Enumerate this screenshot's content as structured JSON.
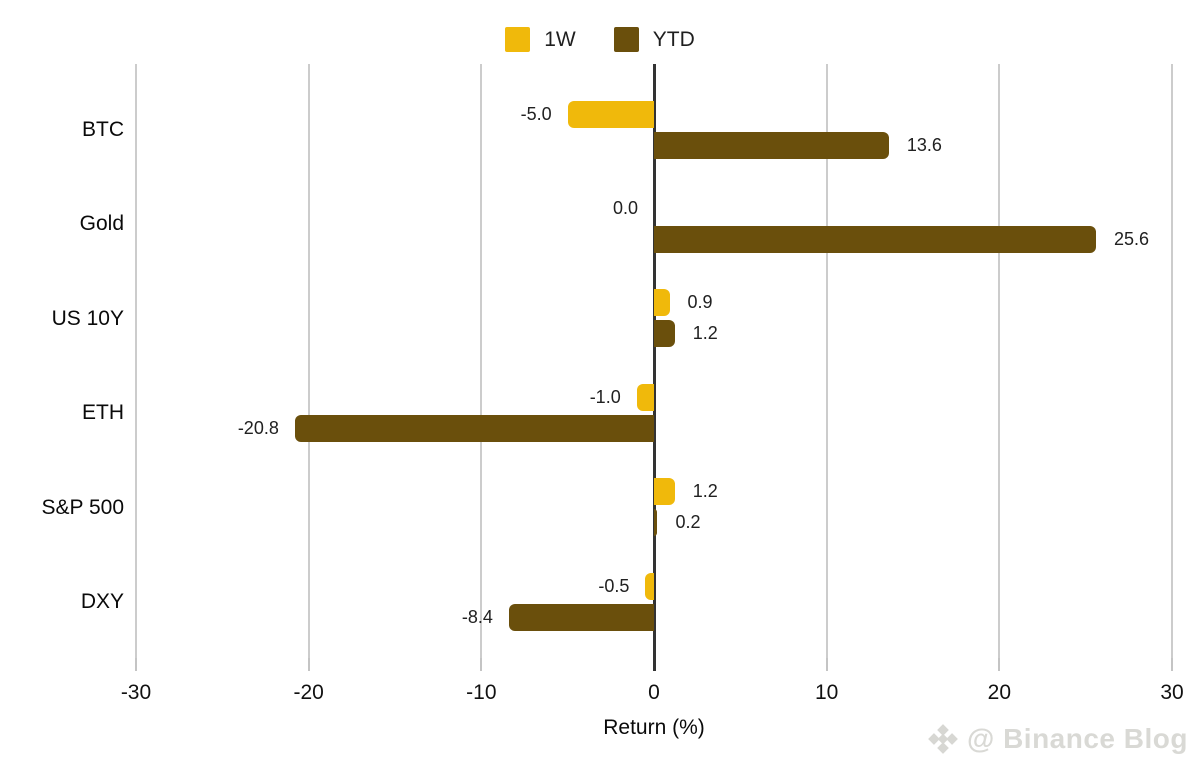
{
  "chart_data": {
    "type": "bar",
    "orientation": "horizontal",
    "title": "",
    "categories": [
      "BTC",
      "Gold",
      "US 10Y",
      "ETH",
      "S&P 500",
      "DXY"
    ],
    "series": [
      {
        "name": "1W",
        "color": "#F0B90B",
        "values": [
          -5.0,
          0.0,
          0.9,
          -1.0,
          1.2,
          -0.5
        ]
      },
      {
        "name": "YTD",
        "color": "#6A4F0C",
        "values": [
          13.6,
          25.6,
          1.2,
          -20.8,
          0.2,
          -8.4
        ]
      }
    ],
    "xlabel": "Return (%)",
    "xlim": [
      -30,
      30
    ],
    "xticks": [
      -30,
      -20,
      -10,
      0,
      10,
      20,
      30
    ],
    "grid": true,
    "legend_position": "top",
    "value_labels": true
  },
  "watermark": {
    "icon": "binance-diamond-icon",
    "text": "@ Binance Blog"
  },
  "colors": {
    "background": "#FFFFFF",
    "gridline": "#CCCCCC",
    "zero_line": "#333333",
    "value_text": "#212121",
    "watermark_text": "#D9D9D5"
  }
}
